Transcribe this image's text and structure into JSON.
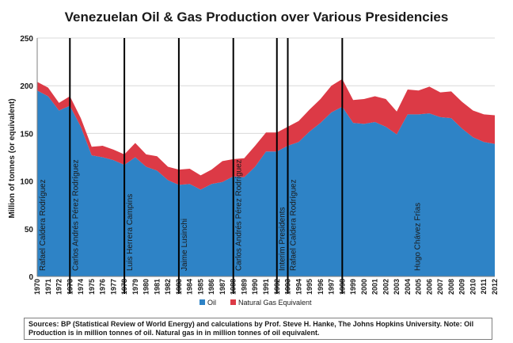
{
  "chart_data": {
    "type": "area",
    "title": "Venezuelan Oil & Gas Production over Various Presidencies",
    "xlabel": "",
    "ylabel": "Million of tonnes (or equivalent)",
    "ylim": [
      0,
      250
    ],
    "yticks": [
      0,
      50,
      100,
      150,
      200,
      250
    ],
    "x": [
      1970,
      1971,
      1972,
      1973,
      1974,
      1975,
      1976,
      1977,
      1978,
      1979,
      1980,
      1981,
      1982,
      1983,
      1984,
      1985,
      1986,
      1987,
      1988,
      1989,
      1990,
      1991,
      1992,
      1993,
      1994,
      1995,
      1996,
      1997,
      1998,
      1999,
      2000,
      2001,
      2002,
      2003,
      2004,
      2005,
      2006,
      2007,
      2008,
      2009,
      2010,
      2011,
      2012
    ],
    "stacked": true,
    "series": [
      {
        "name": "Oil",
        "color": "#2e83c6",
        "values": [
          195,
          189,
          174,
          179,
          157,
          127,
          125,
          122,
          117,
          125,
          115,
          111,
          101,
          96,
          97,
          91,
          97,
          99,
          105,
          104,
          115,
          131,
          131,
          137,
          141,
          152,
          161,
          172,
          178,
          161,
          160,
          162,
          157,
          149,
          170,
          170,
          171,
          167,
          166,
          155,
          146,
          141,
          139
        ]
      },
      {
        "name": "Natural Gas Equivalent",
        "color": "#dc3a46",
        "values": [
          9,
          9,
          8,
          10,
          9,
          9,
          12,
          11,
          11,
          15,
          13,
          15,
          14,
          16,
          16,
          15,
          15,
          22,
          18,
          20,
          22,
          20,
          20,
          20,
          22,
          23,
          25,
          28,
          29,
          24,
          26,
          27,
          29,
          24,
          26,
          25,
          28,
          26,
          28,
          28,
          28,
          29,
          30
        ]
      }
    ],
    "presidencies": [
      {
        "name": "Rafael Caldera Rodríguez",
        "start": 1970,
        "end": 1973
      },
      {
        "name": "Carlos Andrés Pérez Rodríguez",
        "start": 1973,
        "end": 1978
      },
      {
        "name": "Luis Herrera Campins",
        "start": 1978,
        "end": 1983
      },
      {
        "name": "Jaime Lusinchi",
        "start": 1983,
        "end": 1988
      },
      {
        "name": "Carlos Andrés Pérez Rodríguez",
        "start": 1988,
        "end": 1992
      },
      {
        "name": "Interim Presidents",
        "start": 1992,
        "end": 1993
      },
      {
        "name": "Rafael Caldera Rodríguez",
        "start": 1993,
        "end": 1998
      },
      {
        "name": "Hugo Chávez Frías",
        "start": 1998,
        "end": 2012
      }
    ],
    "divider_years": [
      1973,
      1978,
      1983,
      1988,
      1992,
      1993,
      1998
    ],
    "legend_placement": "bottom"
  },
  "source_note": "Sources: BP (Statistical Review of World Energy) and calculations by Prof. Steve H. Hanke, The Johns Hopkins University.  Note:  Oil Production is in million tonnes of oil.  Natural gas in in million tonnes of oil equivalent."
}
